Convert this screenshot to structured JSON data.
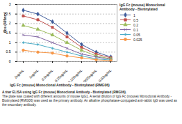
{
  "chart_data": {
    "type": "line",
    "x_label": "IgG Fc (mouse) Monoclonal Antibody - Biotinylated (RMG06)",
    "y_label": "Abs (405nm)",
    "legend_title": "IgG Fc (mouse) Monoclonal Antibody - Biotinylated",
    "caption_title": "A titer ELISA using IgG Fc (mouse) Monoclonal Antibody - Biotinylated (RMG06).",
    "caption": "The plate was coated with different amounts of mouse IgG1. A serial dilution of IgG Fc (mouse) Monoclonal Antibody - Biotinylated (RMG06) was used as the primary antibody. An alkaline phosphatase-conjugated anti-rabbit IgG was used as the secondary antibody.",
    "categories": [
      "2ug/mL",
      "1ug/mL",
      "0.5ug/mL",
      "0.25ug/mL",
      "0.125ug/mL",
      "0.0625ug/mL",
      "0.03ug/mL"
    ],
    "series": [
      {
        "name": "1",
        "color": "#3d5a99",
        "marker": "diamond",
        "values": [
          2.7,
          2.5,
          2.1,
          1.5,
          0.9,
          0.5,
          0.25
        ]
      },
      {
        "name": "0.5",
        "color": "#c0504d",
        "marker": "square",
        "values": [
          2.4,
          2.2,
          1.8,
          1.3,
          0.75,
          0.4,
          0.2
        ]
      },
      {
        "name": "0.2",
        "color": "#9bbb59",
        "marker": "triangle",
        "values": [
          1.9,
          1.7,
          1.4,
          1.0,
          0.6,
          0.3,
          0.15
        ]
      },
      {
        "name": "0.1",
        "color": "#8064a2",
        "marker": "times",
        "values": [
          1.4,
          1.3,
          1.0,
          0.7,
          0.4,
          0.25,
          0.12
        ]
      },
      {
        "name": "0.05",
        "color": "#4bacc6",
        "marker": "asterisk",
        "values": [
          1.0,
          0.9,
          0.7,
          0.5,
          0.3,
          0.15,
          0.08
        ]
      },
      {
        "name": "0.025",
        "color": "#f79646",
        "marker": "circle",
        "values": [
          0.6,
          0.5,
          0.45,
          0.3,
          0.2,
          0.1,
          0.05
        ]
      }
    ],
    "ylim": [
      0,
      3
    ],
    "yticks": [
      0,
      0.5,
      1,
      1.5,
      2,
      2.5,
      3
    ],
    "grid": true,
    "legend": "right"
  }
}
